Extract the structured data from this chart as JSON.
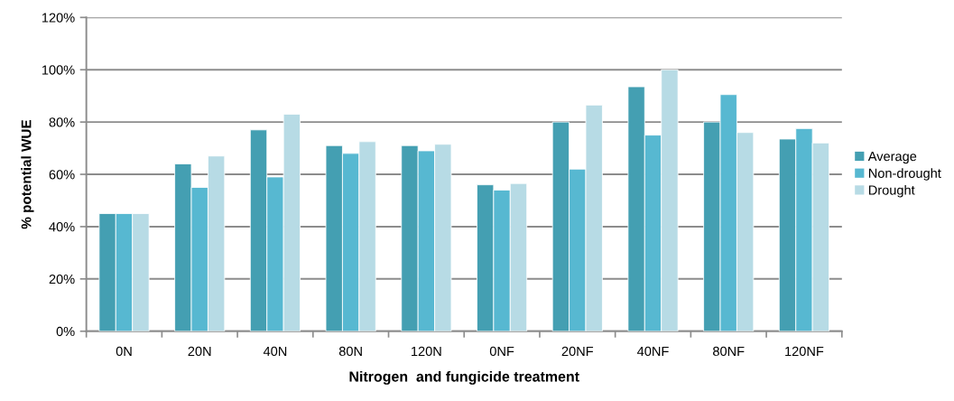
{
  "chart_data": {
    "type": "bar",
    "xlabel": "Nitrogen  and fungicide treatment",
    "ylabel": "% potential WUE",
    "categories": [
      "0N",
      "20N",
      "40N",
      "80N",
      "120N",
      "0NF",
      "20NF",
      "40NF",
      "80NF",
      "120NF"
    ],
    "series": [
      {
        "name": "Average",
        "color": "#449fb2",
        "values": [
          45,
          64,
          77,
          71,
          71,
          56,
          80,
          93.5,
          80,
          73.5
        ]
      },
      {
        "name": "Non-drought",
        "color": "#57b8d1",
        "values": [
          45,
          55,
          59,
          68,
          69,
          54,
          62,
          75,
          90.5,
          77.5
        ]
      },
      {
        "name": "Drought",
        "color": "#b7dbe5",
        "values": [
          45,
          67,
          83,
          72.5,
          71.5,
          56.5,
          86.5,
          100,
          76,
          72
        ]
      }
    ],
    "ylim": [
      0,
      120
    ],
    "yticks": [
      {
        "value": 0,
        "label": "0%"
      },
      {
        "value": 20,
        "label": "20%"
      },
      {
        "value": 40,
        "label": "40%"
      },
      {
        "value": 60,
        "label": "60%"
      },
      {
        "value": 80,
        "label": "80%"
      },
      {
        "value": 100,
        "label": "100%"
      },
      {
        "value": 120,
        "label": "120%"
      }
    ],
    "grid": "y",
    "legend": "right"
  }
}
